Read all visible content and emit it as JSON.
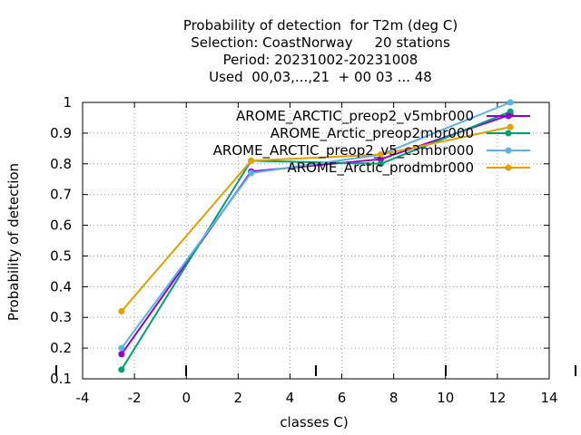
{
  "chart_data": {
    "type": "line",
    "title_lines": [
      "Probability of detection  for T2m (deg C)",
      "Selection: CoastNorway     20 stations",
      "Period: 20231002-20231008",
      "Used  00,03,...,21  + 00 03 ... 48"
    ],
    "xlabel": "classes C)",
    "ylabel": "Probability of detection",
    "xlim": [
      -4,
      14
    ],
    "ylim": [
      0.1,
      1.0
    ],
    "xticks": [
      -4,
      -2,
      0,
      2,
      4,
      6,
      8,
      10,
      12,
      14
    ],
    "xtick_labels": [
      "-4",
      "-2",
      "0",
      "2",
      "4",
      "6",
      "8",
      "10",
      "12",
      "14"
    ],
    "yticks": [
      0.1,
      0.2,
      0.3,
      0.4,
      0.5,
      0.6,
      0.7,
      0.8,
      0.9,
      1.0
    ],
    "ytick_labels": [
      "0.1",
      "0.2",
      "0.3",
      "0.4",
      "0.5",
      "0.6",
      "0.7",
      "0.8",
      "0.9",
      "1"
    ],
    "grid": true,
    "legend_position": "top-right",
    "x": [
      -2.5,
      2.5,
      7.5,
      12.5
    ],
    "series": [
      {
        "name": "AROME_ARCTIC_preop2_v5mbr000",
        "color": "#9400d3",
        "values": [
          0.18,
          0.775,
          0.815,
          0.96
        ]
      },
      {
        "name": "AROME_Arctic_preop2mbr000",
        "color": "#009e73",
        "values": [
          0.13,
          0.81,
          0.8,
          0.97
        ]
      },
      {
        "name": "AROME_ARCTIC_preop2_v5_c3mbr000",
        "color": "#56b4e9",
        "values": [
          0.2,
          0.77,
          0.83,
          1.0
        ]
      },
      {
        "name": "AROME_Arctic_prodmbr000",
        "color": "#e69f00",
        "values": [
          0.32,
          0.81,
          0.83,
          0.92
        ]
      }
    ]
  }
}
